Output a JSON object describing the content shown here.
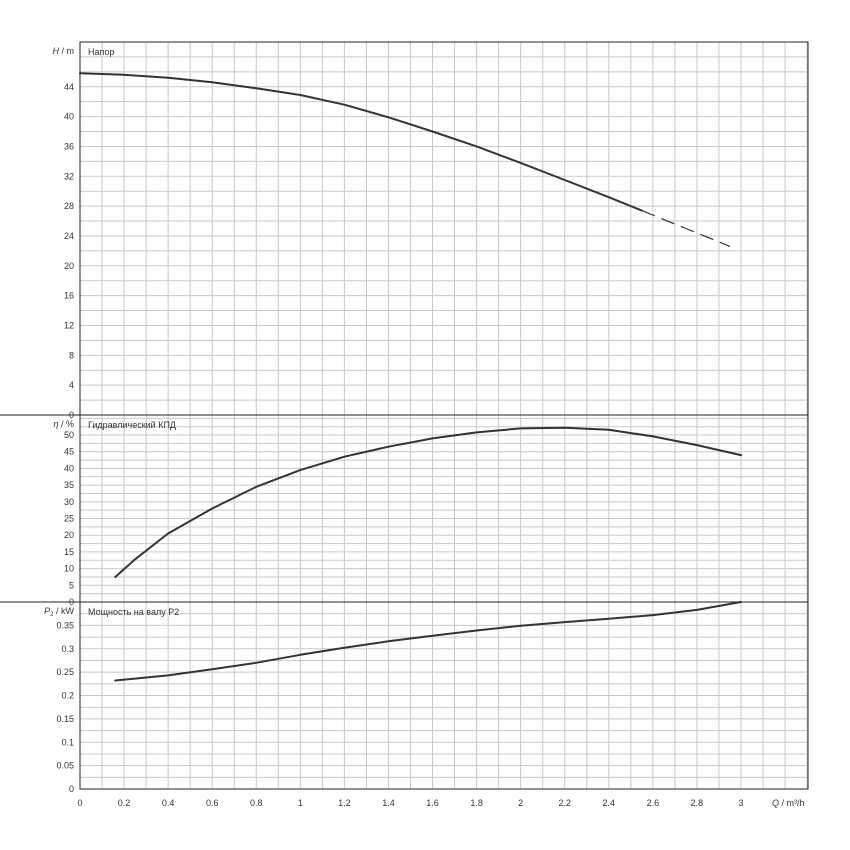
{
  "chart_data": [
    {
      "type": "line",
      "panel": "head",
      "label": "Напор",
      "ylabel_symbol": "H",
      "ylabel_unit": "m",
      "xlim": [
        0,
        3.3
      ],
      "ylim": [
        0,
        50
      ],
      "yticks": [
        0,
        4,
        8,
        12,
        16,
        20,
        24,
        28,
        32,
        36,
        40,
        44
      ],
      "grid": true,
      "series": [
        {
          "x": [
            0,
            0.2,
            0.4,
            0.6,
            0.8,
            1.0,
            1.2,
            1.4,
            1.6,
            1.8,
            2.0,
            2.2,
            2.4,
            2.55
          ],
          "values": [
            45.8,
            45.6,
            45.2,
            44.6,
            43.8,
            42.9,
            41.6,
            39.9,
            38.0,
            36.0,
            33.8,
            31.5,
            29.2,
            27.4
          ],
          "style": "solid"
        },
        {
          "x": [
            2.55,
            2.75,
            2.95
          ],
          "values": [
            27.4,
            25.0,
            22.6
          ],
          "style": "dashed"
        }
      ]
    },
    {
      "type": "line",
      "panel": "efficiency",
      "label": "Гидравлический КПД",
      "ylabel_symbol": "η",
      "ylabel_unit": "%",
      "xlim": [
        0,
        3.3
      ],
      "ylim": [
        0,
        56
      ],
      "yticks": [
        0,
        5,
        10,
        15,
        20,
        25,
        30,
        35,
        40,
        45,
        50
      ],
      "grid": true,
      "series": [
        {
          "x": [
            0.16,
            0.25,
            0.4,
            0.6,
            0.8,
            1.0,
            1.2,
            1.4,
            1.6,
            1.8,
            2.0,
            2.2,
            2.4,
            2.6,
            2.8,
            3.0
          ],
          "values": [
            7.5,
            12.8,
            20.5,
            28.0,
            34.5,
            39.5,
            43.5,
            46.5,
            49.0,
            50.8,
            52.0,
            52.2,
            51.6,
            49.6,
            47.0,
            44.0
          ],
          "style": "solid"
        }
      ]
    },
    {
      "type": "line",
      "panel": "power",
      "label": "Мощность на валу P2",
      "ylabel_symbol": "P",
      "ylabel_subscript": "2",
      "ylabel_unit": "kW",
      "xlim": [
        0,
        3.3
      ],
      "ylim": [
        0,
        0.4
      ],
      "yticks": [
        0,
        0.05,
        0.1,
        0.15,
        0.2,
        0.25,
        0.3,
        0.35
      ],
      "grid": true,
      "series": [
        {
          "x": [
            0.16,
            0.4,
            0.6,
            0.8,
            1.0,
            1.2,
            1.4,
            1.6,
            1.8,
            2.0,
            2.2,
            2.4,
            2.6,
            2.8,
            3.0
          ],
          "values": [
            0.232,
            0.243,
            0.256,
            0.27,
            0.287,
            0.302,
            0.316,
            0.328,
            0.339,
            0.349,
            0.357,
            0.364,
            0.372,
            0.383,
            0.4
          ],
          "style": "solid"
        }
      ]
    }
  ],
  "x_axis": {
    "symbol": "Q",
    "unit": "m³/h",
    "ticks": [
      0,
      0.2,
      0.4,
      0.6,
      0.8,
      1,
      1.2,
      1.4,
      1.6,
      1.8,
      2,
      2.2,
      2.4,
      2.6,
      2.8,
      3
    ],
    "tick_labels": [
      "0",
      "0.2",
      "0.4",
      "0.6",
      "0.8",
      "1",
      "1.2",
      "1.4",
      "1.6",
      "1.8",
      "2",
      "2.2",
      "2.4",
      "2.6",
      "2.8",
      "3"
    ]
  }
}
